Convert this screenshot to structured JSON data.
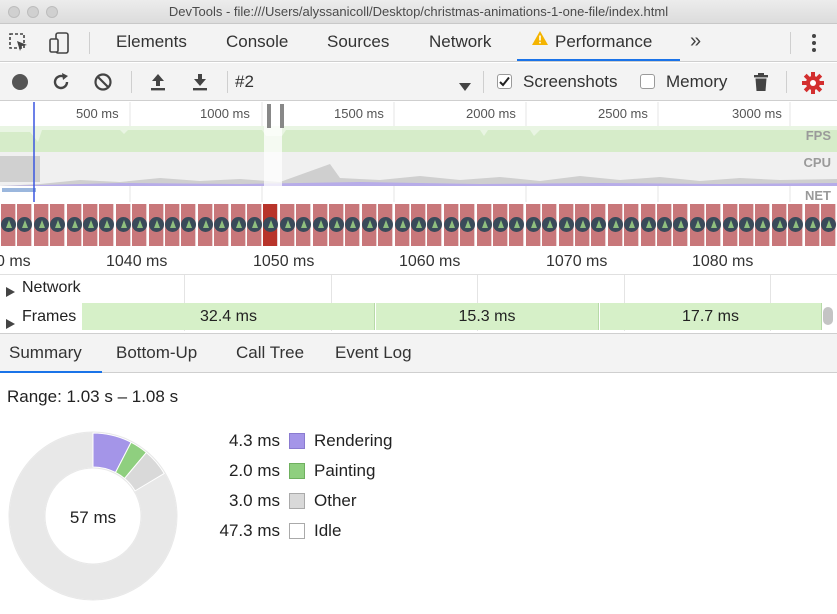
{
  "window": {
    "title": "DevTools - file:///Users/alyssanicoll/Desktop/christmas-animations-1-one-file/index.html"
  },
  "tabs": [
    {
      "label": "Elements"
    },
    {
      "label": "Console"
    },
    {
      "label": "Sources"
    },
    {
      "label": "Network"
    },
    {
      "label": "Performance",
      "active": true
    }
  ],
  "toolbar": {
    "profile_select": "#2",
    "screenshots_label": "Screenshots",
    "screenshots_checked": true,
    "memory_label": "Memory",
    "memory_checked": false
  },
  "overview": {
    "ticks": [
      "500 ms",
      "1000 ms",
      "1500 ms",
      "2000 ms",
      "2500 ms",
      "3000 ms"
    ],
    "lanes": [
      "FPS",
      "CPU",
      "NET"
    ]
  },
  "detail": {
    "ticks": [
      "0 ms",
      "1040 ms",
      "1050 ms",
      "1060 ms",
      "1070 ms",
      "1080 ms"
    ],
    "network_label": "Network",
    "frames_label": "Frames",
    "frames": [
      {
        "duration": "32.4 ms"
      },
      {
        "duration": "15.3 ms"
      },
      {
        "duration": "17.7 ms"
      }
    ]
  },
  "subtabs": [
    {
      "label": "Summary",
      "active": true
    },
    {
      "label": "Bottom-Up"
    },
    {
      "label": "Call Tree"
    },
    {
      "label": "Event Log"
    }
  ],
  "summary": {
    "range": "Range: 1.03 s – 1.08 s",
    "total": "57 ms",
    "items": [
      {
        "value": "4.3 ms",
        "label": "Rendering",
        "ms": 4.3,
        "color": "#a495e8"
      },
      {
        "value": "2.0 ms",
        "label": "Painting",
        "ms": 2.0,
        "color": "#8fcf7f"
      },
      {
        "value": "3.0 ms",
        "label": "Other",
        "ms": 3.0,
        "color": "#d9d9d9"
      },
      {
        "value": "47.3 ms",
        "label": "Idle",
        "ms": 47.3,
        "color": "#ffffff"
      }
    ]
  },
  "colors": {
    "accent": "#1a73e8",
    "record_settings": "#d32f2f",
    "warning": "#f4b400",
    "frames_bg": "#d6f0c8"
  }
}
